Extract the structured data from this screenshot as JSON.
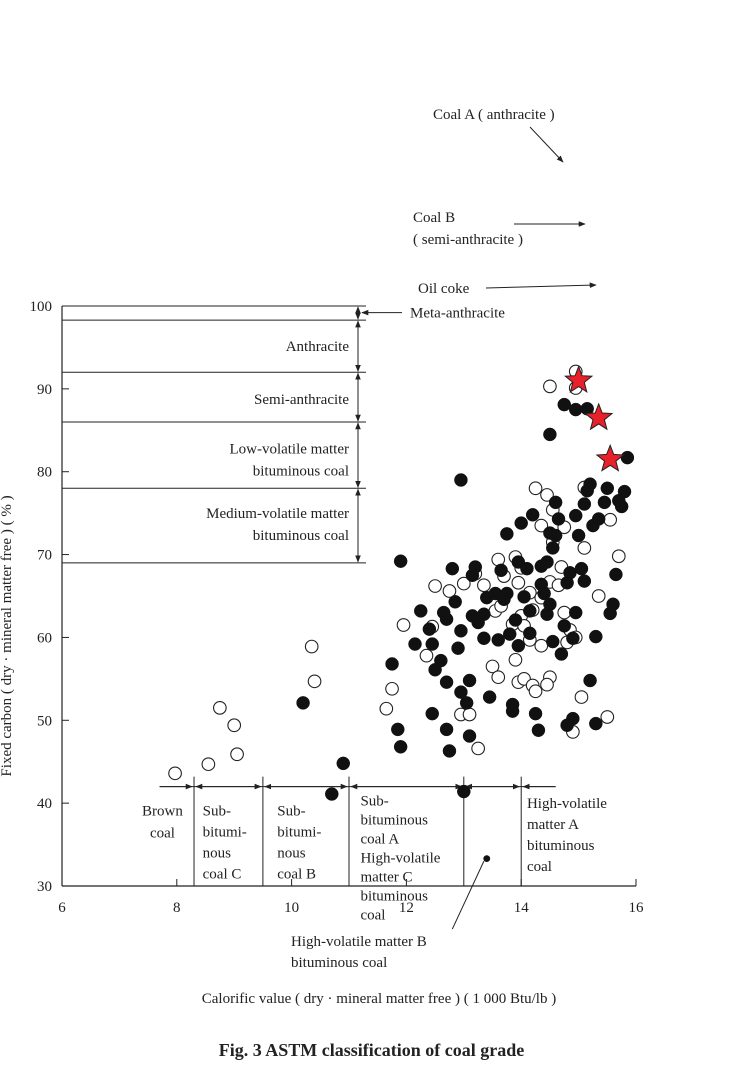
{
  "caption": "Fig. 3  ASTM classification of coal grade",
  "chart_data": {
    "type": "scatter",
    "title": "",
    "xlabel": "Calorific value ( dry · mineral matter free )  ( 1 000 Btu/lb )",
    "ylabel": "Fixed carbon ( dry · mineral matter free ) ( % )",
    "xlim": [
      6,
      16
    ],
    "ylim": [
      30,
      100
    ],
    "x_ticks": [
      6,
      8,
      10,
      12,
      14,
      16
    ],
    "y_ticks": [
      30,
      40,
      50,
      60,
      70,
      80,
      90,
      100
    ],
    "grid": false,
    "fixed_carbon_boundaries": [
      98.3,
      92,
      86,
      78,
      69
    ],
    "calorific_boundaries": [
      8.3,
      9.5,
      11.0,
      13.0,
      14.0
    ],
    "fixed_carbon_classes": [
      {
        "label": "Meta-anthracite"
      },
      {
        "label": "Anthracite"
      },
      {
        "label": "Semi-anthracite"
      },
      {
        "lines": [
          "Low-volatile matter",
          "bituminous coal"
        ]
      },
      {
        "lines": [
          "Medium-volatile matter",
          "bituminous coal"
        ]
      }
    ],
    "calorific_classes": [
      {
        "lines": [
          "Brown",
          "coal"
        ]
      },
      {
        "lines": [
          "Sub-",
          "bitumi-",
          "nous",
          "coal C"
        ]
      },
      {
        "lines": [
          "Sub-",
          "bitumi-",
          "nous",
          "coal B"
        ]
      },
      {
        "lines": [
          "Sub-",
          "bituminous",
          "coal A",
          "High-volatile",
          "matter C",
          "bituminous",
          "coal"
        ]
      },
      {
        "lines": [
          "High-volatile",
          "matter A",
          "bituminous",
          "coal"
        ]
      }
    ],
    "hv_b_label": [
      "High-volatile matter B",
      "bituminous coal"
    ],
    "stars": [
      {
        "name": "Coal A",
        "lines": [
          "Coal A ( anthracite )"
        ],
        "x": 15.0,
        "y": 91.0
      },
      {
        "name": "Coal B",
        "lines": [
          "Coal B",
          "( semi-anthracite )"
        ],
        "x": 15.35,
        "y": 86.5
      },
      {
        "name": "Oil coke",
        "lines": [
          "Oil coke"
        ],
        "x": 15.55,
        "y": 81.5
      }
    ],
    "series": [
      {
        "marker": "open-circle",
        "points": [
          [
            7.97,
            43.6
          ],
          [
            8.55,
            44.7
          ],
          [
            9.05,
            45.9
          ],
          [
            9.0,
            49.4
          ],
          [
            8.75,
            51.5
          ],
          [
            10.35,
            58.9
          ],
          [
            10.4,
            54.7
          ],
          [
            11.65,
            51.4
          ],
          [
            11.75,
            53.8
          ],
          [
            11.95,
            61.5
          ],
          [
            12.35,
            57.8
          ],
          [
            12.45,
            61.3
          ],
          [
            12.5,
            66.2
          ],
          [
            12.75,
            65.6
          ],
          [
            12.95,
            50.7
          ],
          [
            13.1,
            50.7
          ],
          [
            13.25,
            46.6
          ],
          [
            13.0,
            66.5
          ],
          [
            13.2,
            67.7
          ],
          [
            13.35,
            66.3
          ],
          [
            13.55,
            63.2
          ],
          [
            13.5,
            56.5
          ],
          [
            13.6,
            55.2
          ],
          [
            13.6,
            69.4
          ],
          [
            13.7,
            67.4
          ],
          [
            13.65,
            63.8
          ],
          [
            13.85,
            61.6
          ],
          [
            13.9,
            57.3
          ],
          [
            13.95,
            66.6
          ],
          [
            13.9,
            69.7
          ],
          [
            14.0,
            68.4
          ],
          [
            14.0,
            62.6
          ],
          [
            14.05,
            61.4
          ],
          [
            13.95,
            54.6
          ],
          [
            14.05,
            55.0
          ],
          [
            14.15,
            65.4
          ],
          [
            14.2,
            63.3
          ],
          [
            14.15,
            59.7
          ],
          [
            14.2,
            54.2
          ],
          [
            14.25,
            53.5
          ],
          [
            14.35,
            64.8
          ],
          [
            14.35,
            59.0
          ],
          [
            14.35,
            73.5
          ],
          [
            14.45,
            77.2
          ],
          [
            14.55,
            75.4
          ],
          [
            14.25,
            78.0
          ],
          [
            14.5,
            55.2
          ],
          [
            14.45,
            54.3
          ],
          [
            14.5,
            66.7
          ],
          [
            14.55,
            71.5
          ],
          [
            14.65,
            66.3
          ],
          [
            14.7,
            68.5
          ],
          [
            14.75,
            73.3
          ],
          [
            14.75,
            63.0
          ],
          [
            14.8,
            59.4
          ],
          [
            14.85,
            60.9
          ],
          [
            14.9,
            48.6
          ],
          [
            14.95,
            60.0
          ],
          [
            15.05,
            52.8
          ],
          [
            15.1,
            70.8
          ],
          [
            15.1,
            78.1
          ],
          [
            15.35,
            65.0
          ],
          [
            15.5,
            50.4
          ],
          [
            15.55,
            74.2
          ],
          [
            15.7,
            69.8
          ],
          [
            14.5,
            90.3
          ],
          [
            14.95,
            92.1
          ],
          [
            14.95,
            90.1
          ]
        ]
      },
      {
        "marker": "filled-circle",
        "points": [
          [
            10.2,
            52.1
          ],
          [
            10.9,
            44.8
          ],
          [
            10.7,
            41.1
          ],
          [
            13.0,
            41.4
          ],
          [
            11.9,
            69.2
          ],
          [
            12.95,
            79.0
          ],
          [
            11.75,
            56.8
          ],
          [
            11.85,
            48.9
          ],
          [
            11.9,
            46.8
          ],
          [
            12.15,
            59.2
          ],
          [
            12.25,
            63.2
          ],
          [
            12.4,
            61.0
          ],
          [
            12.45,
            59.2
          ],
          [
            12.45,
            50.8
          ],
          [
            12.5,
            56.1
          ],
          [
            12.6,
            57.2
          ],
          [
            12.65,
            63.0
          ],
          [
            12.7,
            62.2
          ],
          [
            12.7,
            54.6
          ],
          [
            12.7,
            48.9
          ],
          [
            12.75,
            46.3
          ],
          [
            12.8,
            68.3
          ],
          [
            12.85,
            64.3
          ],
          [
            12.9,
            58.7
          ],
          [
            12.95,
            60.8
          ],
          [
            12.95,
            53.4
          ],
          [
            13.05,
            52.1
          ],
          [
            13.1,
            48.1
          ],
          [
            13.1,
            54.8
          ],
          [
            13.15,
            62.6
          ],
          [
            13.15,
            67.5
          ],
          [
            13.2,
            68.5
          ],
          [
            13.25,
            61.8
          ],
          [
            13.35,
            59.9
          ],
          [
            13.35,
            62.8
          ],
          [
            13.4,
            64.8
          ],
          [
            13.45,
            52.8
          ],
          [
            13.55,
            65.3
          ],
          [
            13.6,
            59.7
          ],
          [
            13.65,
            68.1
          ],
          [
            13.7,
            64.6
          ],
          [
            13.75,
            65.3
          ],
          [
            13.75,
            72.5
          ],
          [
            13.8,
            60.4
          ],
          [
            13.85,
            51.9
          ],
          [
            13.85,
            51.1
          ],
          [
            13.9,
            62.1
          ],
          [
            13.95,
            59.0
          ],
          [
            13.95,
            69.1
          ],
          [
            14.0,
            73.8
          ],
          [
            14.05,
            64.9
          ],
          [
            14.1,
            68.3
          ],
          [
            14.15,
            63.2
          ],
          [
            14.15,
            60.5
          ],
          [
            14.2,
            74.8
          ],
          [
            14.25,
            50.8
          ],
          [
            14.3,
            48.8
          ],
          [
            14.35,
            66.4
          ],
          [
            14.35,
            68.6
          ],
          [
            14.4,
            65.3
          ],
          [
            14.45,
            62.8
          ],
          [
            14.45,
            69.1
          ],
          [
            14.5,
            64.0
          ],
          [
            14.55,
            59.5
          ],
          [
            14.55,
            70.8
          ],
          [
            14.6,
            72.3
          ],
          [
            14.65,
            74.3
          ],
          [
            14.7,
            58.0
          ],
          [
            14.75,
            61.4
          ],
          [
            14.8,
            66.6
          ],
          [
            14.85,
            67.8
          ],
          [
            14.9,
            59.9
          ],
          [
            14.95,
            74.7
          ],
          [
            14.95,
            63.0
          ],
          [
            15.0,
            72.3
          ],
          [
            15.05,
            68.3
          ],
          [
            15.1,
            66.8
          ],
          [
            15.1,
            76.1
          ],
          [
            15.15,
            77.7
          ],
          [
            15.2,
            78.5
          ],
          [
            15.25,
            73.5
          ],
          [
            15.3,
            60.1
          ],
          [
            15.35,
            74.3
          ],
          [
            15.45,
            76.3
          ],
          [
            15.5,
            78.0
          ],
          [
            15.55,
            62.9
          ],
          [
            15.6,
            64.0
          ],
          [
            15.65,
            67.6
          ],
          [
            15.7,
            76.5
          ],
          [
            15.75,
            75.8
          ],
          [
            15.8,
            77.6
          ],
          [
            15.2,
            54.8
          ],
          [
            15.3,
            49.6
          ],
          [
            14.9,
            50.2
          ],
          [
            14.8,
            49.4
          ],
          [
            14.5,
            84.5
          ],
          [
            14.75,
            88.1
          ],
          [
            14.95,
            87.5
          ],
          [
            15.15,
            87.6
          ],
          [
            15.85,
            81.7
          ],
          [
            14.6,
            76.3
          ],
          [
            14.5,
            72.6
          ]
        ]
      },
      {
        "marker": "dot",
        "points": [
          [
            13.4,
            33.3
          ]
        ]
      }
    ]
  }
}
